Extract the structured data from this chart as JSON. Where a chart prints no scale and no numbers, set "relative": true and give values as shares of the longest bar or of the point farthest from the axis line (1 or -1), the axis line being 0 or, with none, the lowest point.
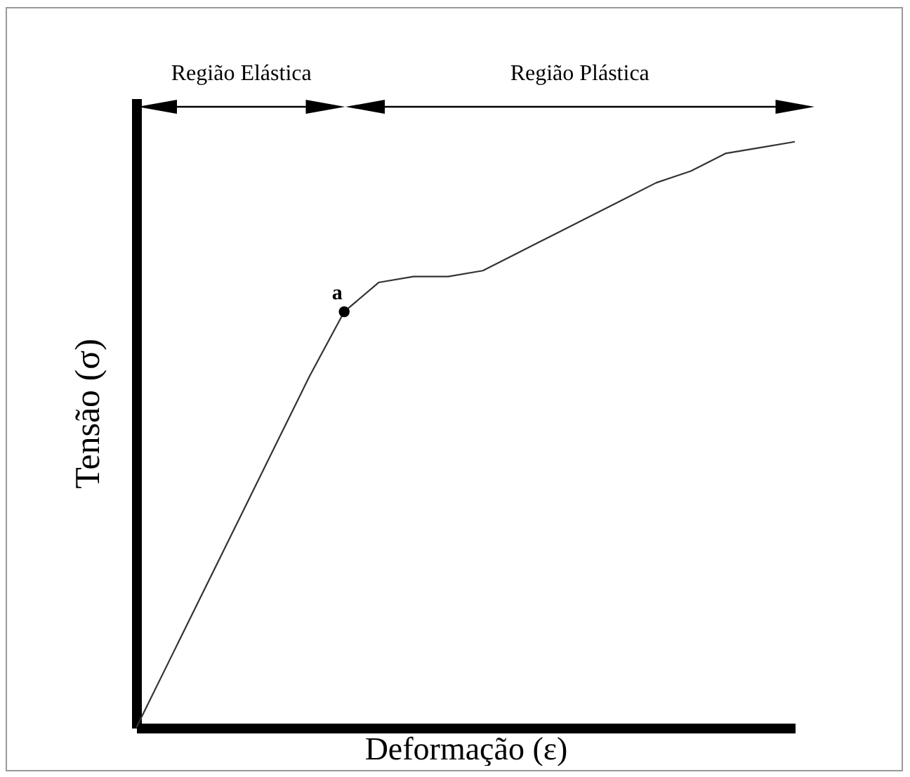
{
  "chart_data": {
    "type": "line",
    "relative": true,
    "xlabel": "Deformação (ε)",
    "ylabel": "Tensão (σ)",
    "categories": [
      null,
      null,
      null,
      null,
      null,
      null,
      null,
      null,
      null,
      null,
      null,
      null,
      null,
      null,
      null,
      null,
      null,
      null,
      null,
      null
    ],
    "series": [
      {
        "color": "#333333",
        "values": [
          0,
          0.12,
          0.24,
          0.36,
          0.48,
          0.6,
          0.71,
          0.76,
          0.77,
          0.77,
          0.78,
          0.81,
          0.84,
          0.87,
          0.9,
          0.93,
          0.95,
          0.98,
          0.99,
          1
        ]
      }
    ],
    "annotations": [
      "Região Elástica",
      "Região Plástica",
      {
        "text": "a",
        "y": 0.71
      }
    ],
    "grid": false
  }
}
